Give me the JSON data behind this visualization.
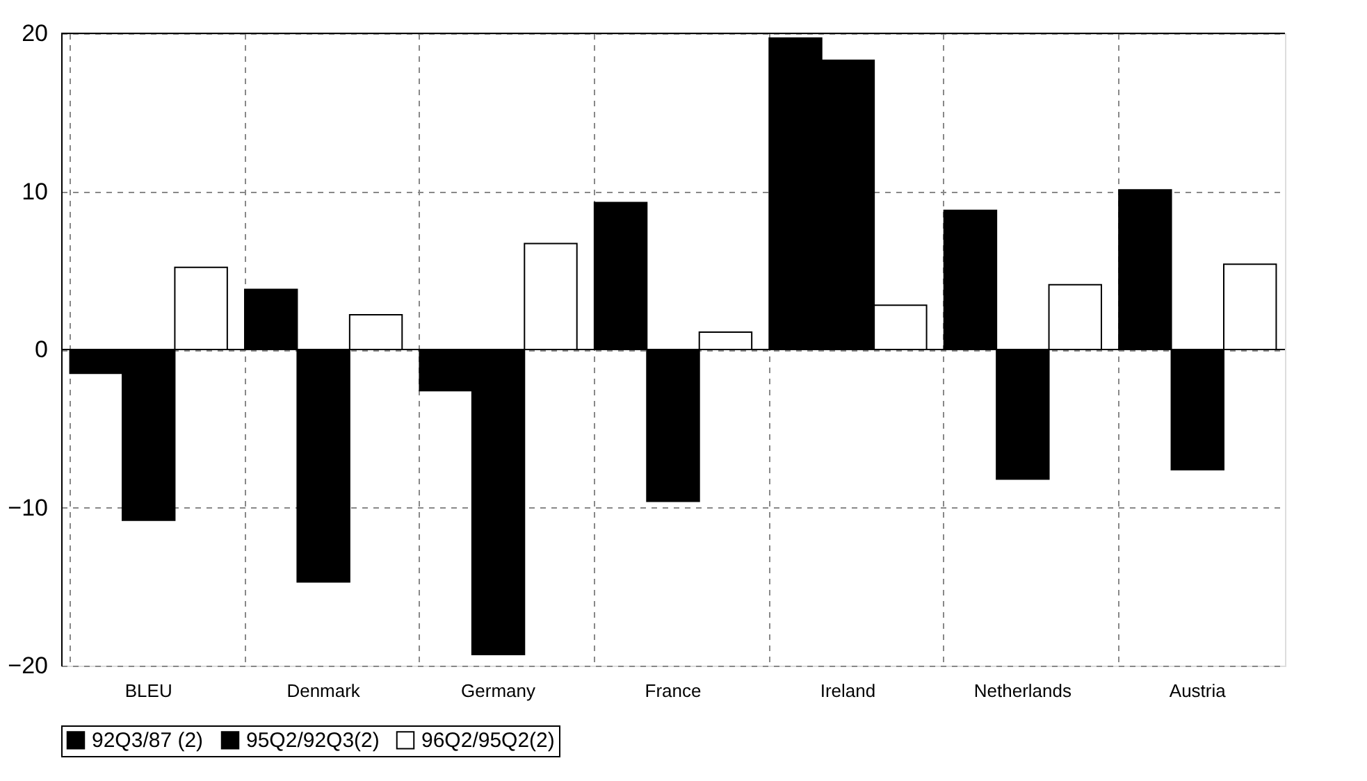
{
  "chart_data": {
    "type": "bar",
    "categories": [
      "BLEU",
      "Denmark",
      "Germany",
      "France",
      "Ireland",
      "Netherlands",
      "Austria"
    ],
    "series": [
      {
        "name": "92Q3/87 (2)",
        "color": "#000000",
        "values": [
          -1.5,
          3.8,
          -2.6,
          9.3,
          19.7,
          8.8,
          10.1
        ]
      },
      {
        "name": "95Q2/92Q3(2)",
        "color": "#000000",
        "values": [
          -10.8,
          -14.7,
          -19.3,
          -9.6,
          18.3,
          -8.2,
          -7.6
        ]
      },
      {
        "name": "96Q2/95Q2(2)",
        "color": "#ffffff",
        "values": [
          5.2,
          2.2,
          6.7,
          1.1,
          2.8,
          4.1,
          5.4
        ]
      }
    ],
    "ylim": [
      -20,
      20
    ],
    "yticks": [
      -20,
      -10,
      0,
      10,
      20
    ],
    "grid": true,
    "legend": "bottom"
  }
}
